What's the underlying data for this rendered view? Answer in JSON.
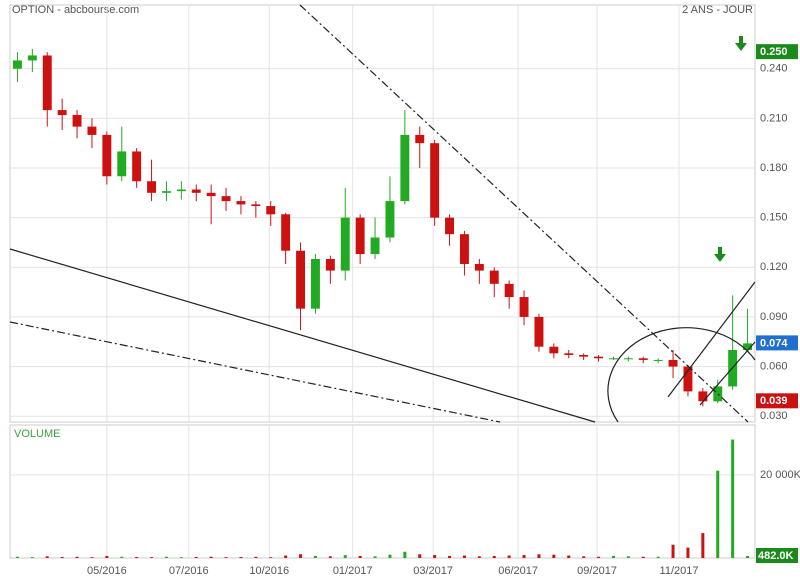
{
  "header": {
    "title": "OPTION - abcbourse.com",
    "period": "2 ANS - JOUR"
  },
  "chart_data": [
    {
      "type": "candlestick",
      "x": [
        0,
        1,
        2,
        3,
        4,
        5,
        6,
        7,
        8,
        9,
        10,
        11,
        12,
        13,
        14,
        15,
        16,
        17,
        18,
        19,
        20,
        21,
        22,
        23,
        24,
        25,
        26,
        27,
        28,
        29,
        30,
        31,
        32,
        33,
        34,
        35,
        36,
        37,
        38,
        39,
        40,
        41,
        42,
        43,
        44,
        45,
        46,
        47,
        48,
        49
      ],
      "open": [
        0.24,
        0.245,
        0.248,
        0.215,
        0.212,
        0.205,
        0.2,
        0.175,
        0.19,
        0.172,
        0.165,
        0.166,
        0.167,
        0.165,
        0.163,
        0.16,
        0.158,
        0.157,
        0.152,
        0.13,
        0.095,
        0.125,
        0.118,
        0.15,
        0.128,
        0.138,
        0.16,
        0.2,
        0.195,
        0.15,
        0.14,
        0.122,
        0.118,
        0.11,
        0.102,
        0.09,
        0.072,
        0.068,
        0.067,
        0.066,
        0.065,
        0.065,
        0.065,
        0.064,
        0.064,
        0.06,
        0.045,
        0.039,
        0.048,
        0.07
      ],
      "high": [
        0.25,
        0.252,
        0.25,
        0.222,
        0.215,
        0.21,
        0.202,
        0.205,
        0.192,
        0.185,
        0.172,
        0.172,
        0.17,
        0.17,
        0.168,
        0.163,
        0.16,
        0.16,
        0.153,
        0.135,
        0.128,
        0.127,
        0.168,
        0.152,
        0.15,
        0.175,
        0.215,
        0.205,
        0.197,
        0.152,
        0.142,
        0.125,
        0.12,
        0.112,
        0.106,
        0.092,
        0.074,
        0.07,
        0.068,
        0.067,
        0.066,
        0.066,
        0.066,
        0.065,
        0.07,
        0.061,
        0.047,
        0.052,
        0.103,
        0.095
      ],
      "low": [
        0.232,
        0.238,
        0.205,
        0.203,
        0.198,
        0.192,
        0.17,
        0.172,
        0.168,
        0.16,
        0.16,
        0.161,
        0.16,
        0.146,
        0.154,
        0.152,
        0.15,
        0.145,
        0.122,
        0.082,
        0.092,
        0.11,
        0.112,
        0.122,
        0.125,
        0.135,
        0.158,
        0.18,
        0.145,
        0.133,
        0.115,
        0.11,
        0.102,
        0.095,
        0.085,
        0.069,
        0.065,
        0.065,
        0.064,
        0.063,
        0.064,
        0.063,
        0.062,
        0.062,
        0.053,
        0.042,
        0.036,
        0.038,
        0.046,
        0.071
      ],
      "close": [
        0.245,
        0.248,
        0.215,
        0.212,
        0.205,
        0.2,
        0.175,
        0.19,
        0.172,
        0.165,
        0.166,
        0.167,
        0.165,
        0.163,
        0.16,
        0.158,
        0.157,
        0.152,
        0.13,
        0.095,
        0.125,
        0.118,
        0.15,
        0.128,
        0.138,
        0.16,
        0.2,
        0.195,
        0.15,
        0.14,
        0.122,
        0.118,
        0.11,
        0.102,
        0.09,
        0.072,
        0.068,
        0.067,
        0.066,
        0.065,
        0.065,
        0.065,
        0.064,
        0.064,
        0.06,
        0.045,
        0.039,
        0.048,
        0.07,
        0.074
      ],
      "up_color": "#22aa22",
      "down_color": "#cc1111",
      "xlim": [
        -0.5,
        49.5
      ],
      "xticks": [
        {
          "value": 6.0,
          "label": "05/2016"
        },
        {
          "value": 11.5,
          "label": "07/2016"
        },
        {
          "value": 16.9,
          "label": "10/2016"
        },
        {
          "value": 22.5,
          "label": "01/2017"
        },
        {
          "value": 27.9,
          "label": "03/2017"
        },
        {
          "value": 33.6,
          "label": "06/2017"
        },
        {
          "value": 38.9,
          "label": "09/2017"
        },
        {
          "value": 44.4,
          "label": "11/2017"
        }
      ],
      "ylim": [
        0.0265,
        0.2785
      ],
      "yticks": [
        {
          "value": 0.03,
          "label": "0.030"
        },
        {
          "value": 0.06,
          "label": "0.060"
        },
        {
          "value": 0.09,
          "label": "0.090"
        },
        {
          "value": 0.12,
          "label": "0.120"
        },
        {
          "value": 0.15,
          "label": "0.150"
        },
        {
          "value": 0.18,
          "label": "0.180"
        },
        {
          "value": 0.21,
          "label": "0.210"
        },
        {
          "value": 0.24,
          "label": "0.240"
        }
      ],
      "markers": [
        {
          "value": 0.25,
          "label": "0.250",
          "color": "#1a8a1a"
        },
        {
          "value": 0.074,
          "label": "0.074",
          "color": "#1f6fd1"
        },
        {
          "value": 0.039,
          "label": "0.039",
          "color": "#cc1111"
        }
      ],
      "grid": true
    },
    {
      "type": "bar",
      "title": "VOLUME",
      "values": [
        300,
        200,
        400,
        250,
        300,
        200,
        500,
        300,
        250,
        200,
        300,
        200,
        250,
        300,
        200,
        250,
        300,
        200,
        600,
        900,
        500,
        400,
        700,
        500,
        400,
        800,
        1500,
        900,
        700,
        500,
        600,
        400,
        500,
        600,
        700,
        900,
        800,
        600,
        400,
        300,
        500,
        400,
        300,
        300,
        3200,
        2500,
        6000,
        21000,
        28500,
        482
      ],
      "value_labels": [
        null,
        null,
        null,
        null,
        null,
        null,
        null,
        null,
        null,
        null,
        null,
        null,
        null,
        null,
        null,
        null,
        null,
        null,
        null,
        null,
        null,
        null,
        null,
        null,
        null,
        null,
        null,
        null,
        null,
        null,
        null,
        null,
        null,
        null,
        null,
        null,
        null,
        null,
        null,
        null,
        null,
        null,
        null,
        null,
        null,
        null,
        null,
        null,
        null,
        "482.0K"
      ],
      "label_color": "#1a8a1a",
      "ylim": [
        0,
        32000
      ],
      "yticks": [
        {
          "value": 20000,
          "label": "20 000K"
        }
      ]
    }
  ]
}
